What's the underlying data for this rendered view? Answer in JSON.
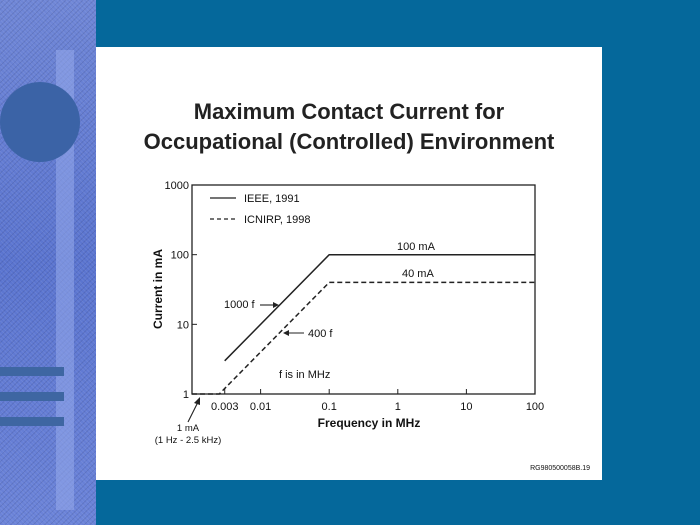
{
  "slide": {
    "title_line1": "Maximum Contact Current for",
    "title_line2": "Occupational (Controlled) Environment",
    "code": "RG980500058B.19"
  },
  "chart_data": {
    "type": "line",
    "xlabel": "Frequency in MHz",
    "ylabel": "Current in mA",
    "x_scale": "log",
    "y_scale": "log",
    "xlim": [
      0.001,
      100
    ],
    "ylim": [
      1,
      1000
    ],
    "x_ticks": [
      {
        "value": 0.003,
        "label": "0.003"
      },
      {
        "value": 0.01,
        "label": "0.01"
      },
      {
        "value": 0.1,
        "label": "0.1"
      },
      {
        "value": 1,
        "label": "1"
      },
      {
        "value": 10,
        "label": "10"
      },
      {
        "value": 100,
        "label": "100"
      }
    ],
    "y_ticks": [
      {
        "value": 1,
        "label": "1"
      },
      {
        "value": 10,
        "label": "10"
      },
      {
        "value": 100,
        "label": "100"
      },
      {
        "value": 1000,
        "label": "1000"
      }
    ],
    "series": [
      {
        "name": "IEEE, 1991",
        "style": "solid",
        "points": [
          [
            0.003,
            3
          ],
          [
            0.1,
            100
          ],
          [
            100,
            100
          ]
        ]
      },
      {
        "name": "ICNIRP, 1998",
        "style": "dashed",
        "points": [
          [
            0.001,
            1
          ],
          [
            0.0025,
            1
          ],
          [
            0.1,
            40
          ],
          [
            100,
            40
          ]
        ]
      }
    ],
    "legend_position": "top-left",
    "annotations": {
      "label_100ma": "100 mA",
      "label_40ma": "40 mA",
      "label_1000f": "1000 f",
      "label_400f": "400 f",
      "f_note": "f is in MHz",
      "one_ma_line1": "1 mA",
      "one_ma_line2": "(1 Hz - 2.5 kHz)"
    }
  }
}
